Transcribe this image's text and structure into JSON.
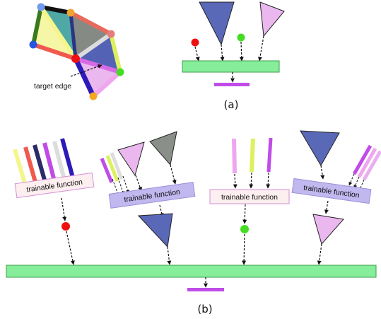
{
  "panel_a": {
    "caption": "(a)",
    "target_edge_label": "target edge"
  },
  "panel_b": {
    "caption": "(b)",
    "module_label": "trainable function"
  },
  "colors": {
    "blue_triangle": "#5a68b8",
    "pink_triangle": "#eab8ee",
    "gray_triangle": "#8a9089",
    "teal_triangle": "#4fa8a6",
    "green_bar": "#86ee9a",
    "purple_bar": "#c04ce8",
    "red_node": "#ee1111",
    "green_node": "#44dd22",
    "lavender_box": "#c0b8ee",
    "pink_box": "#fdeef0"
  }
}
